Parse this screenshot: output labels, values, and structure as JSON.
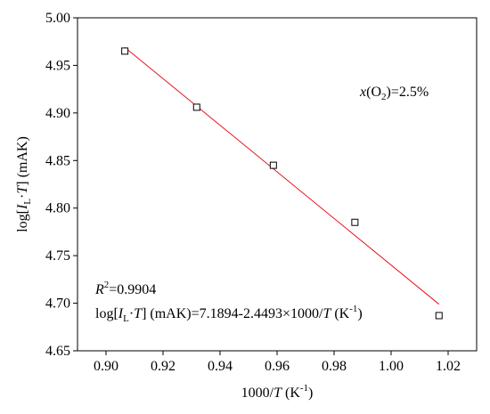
{
  "chart_data": {
    "type": "scatter",
    "title": "",
    "xlabel": {
      "prefix": "1000/",
      "var": "T",
      "suffix": " (K",
      "sup": "-1",
      "close": ")"
    },
    "ylabel": {
      "prefix": "log[",
      "var1": "I",
      "sub": "L",
      "dot": "·",
      "var2": "T",
      "suffix": "] (mAK)"
    },
    "xlim": [
      0.89,
      1.03
    ],
    "ylim": [
      4.65,
      5.0
    ],
    "xticks": [
      0.9,
      0.92,
      0.94,
      0.96,
      0.98,
      1.0,
      1.02
    ],
    "xtick_labels": [
      "0.90",
      "0.92",
      "0.94",
      "0.96",
      "0.98",
      "1.00",
      "1.02"
    ],
    "yticks": [
      4.65,
      4.7,
      4.75,
      4.8,
      4.85,
      4.9,
      4.95,
      5.0
    ],
    "ytick_labels": [
      "4.65",
      "4.70",
      "4.75",
      "4.80",
      "4.85",
      "4.90",
      "4.95",
      "5.00"
    ],
    "grid": false,
    "series": [
      {
        "marker": "open-square",
        "color": "#000000",
        "x": [
          0.9066,
          0.9318,
          0.9587,
          0.9873,
          1.0168
        ],
        "y": [
          4.965,
          4.906,
          4.845,
          4.785,
          4.687
        ]
      }
    ],
    "fit_line": {
      "color": "#e8141e",
      "intercept": 7.1894,
      "slope": -2.4493,
      "x_range": [
        0.9066,
        1.0168
      ]
    },
    "annotations": {
      "condition": {
        "var": "x",
        "open": "(O",
        "sub": "2",
        "rest": ")=2.5%"
      },
      "r2": {
        "var": "R",
        "sup": "2",
        "rest": "=0.9904"
      },
      "equation": {
        "p1": "log[",
        "var1": "I",
        "sub": "L",
        "dot": "·",
        "var2": "T",
        "p2": "] (mAK)=7.1894-2.4493×1000/",
        "var3": "T",
        "p3": " (K",
        "sup": "-1",
        "p4": ")"
      }
    }
  }
}
